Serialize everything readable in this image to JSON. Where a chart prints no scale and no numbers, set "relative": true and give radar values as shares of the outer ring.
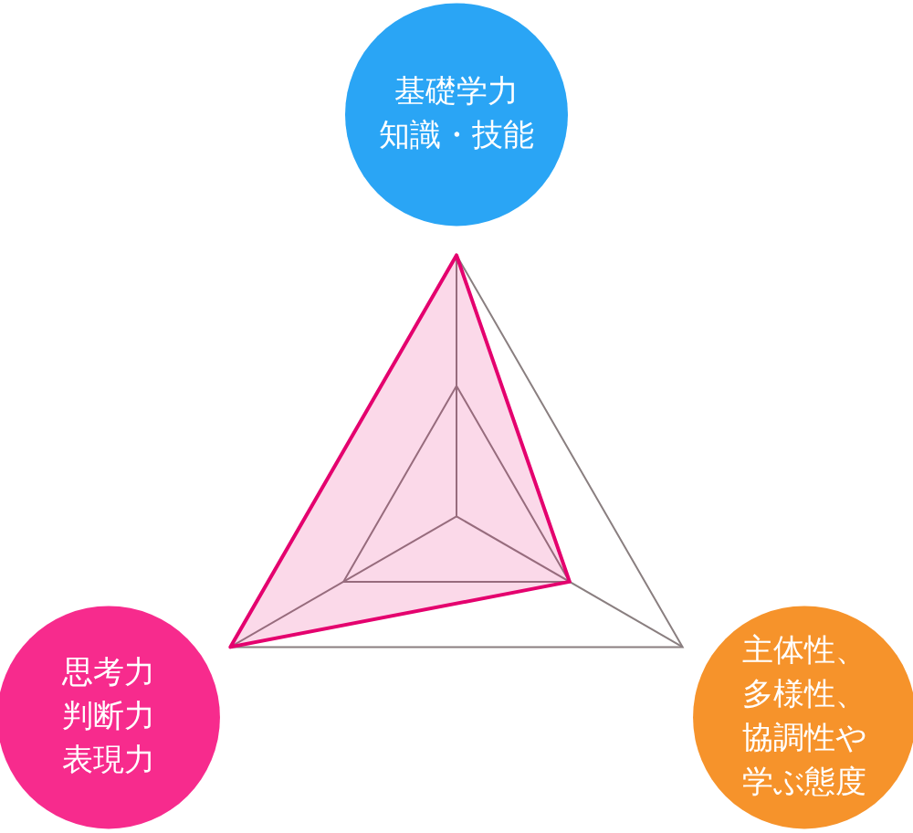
{
  "chart_data": {
    "type": "radar",
    "relative": true,
    "grid": true,
    "categories": [
      "基礎学力知識・技能",
      "主体性、多様性、協調性や学ぶ態度",
      "思考力判断力表現力"
    ],
    "series": [
      {
        "color": "#e4006e",
        "values": [
          1,
          0.5,
          1
        ]
      }
    ]
  }
}
